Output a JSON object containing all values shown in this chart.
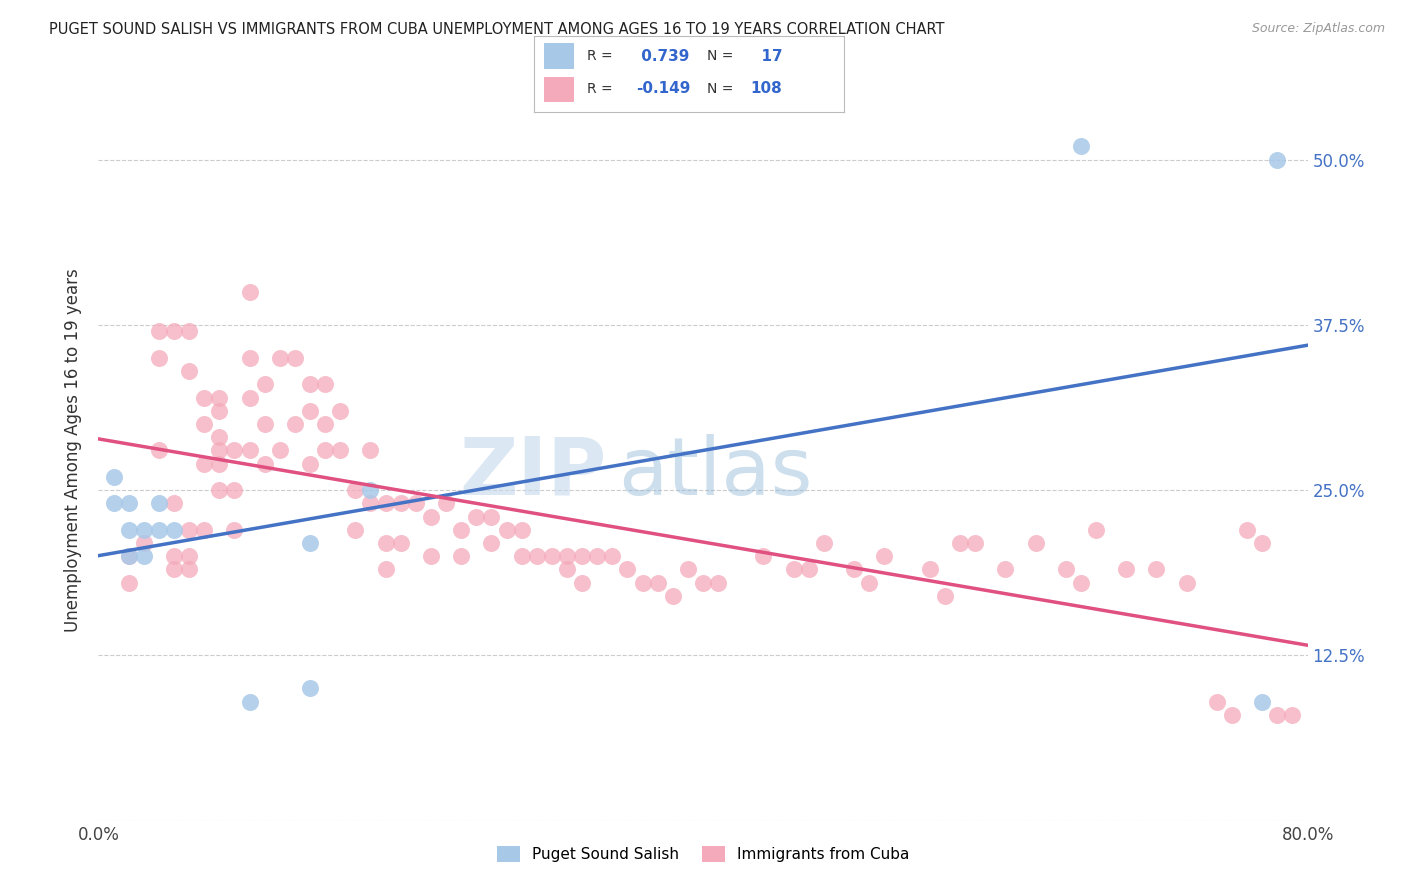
{
  "title": "PUGET SOUND SALISH VS IMMIGRANTS FROM CUBA UNEMPLOYMENT AMONG AGES 16 TO 19 YEARS CORRELATION CHART",
  "source": "Source: ZipAtlas.com",
  "ylabel": "Unemployment Among Ages 16 to 19 years",
  "xlim": [
    0.0,
    0.8
  ],
  "ylim": [
    0.0,
    0.56
  ],
  "xticks": [
    0.0,
    0.1,
    0.2,
    0.3,
    0.4,
    0.5,
    0.6,
    0.7,
    0.8
  ],
  "xtick_labels": [
    "0.0%",
    "",
    "",
    "",
    "",
    "",
    "",
    "",
    "80.0%"
  ],
  "yticks": [
    0.0,
    0.125,
    0.25,
    0.375,
    0.5
  ],
  "ytick_labels_right": [
    "",
    "12.5%",
    "25.0%",
    "37.5%",
    "50.0%"
  ],
  "blue_r": 0.739,
  "blue_n": 17,
  "pink_r": -0.149,
  "pink_n": 108,
  "blue_color": "#a8c8e8",
  "pink_color": "#f4aaba",
  "blue_line_color": "#4472c4",
  "pink_line_color": "#e05080",
  "legend_r_color": "#3366cc",
  "watermark_zip": "ZIP",
  "watermark_atlas": "atlas",
  "blue_points_x": [
    0.01,
    0.01,
    0.02,
    0.02,
    0.02,
    0.03,
    0.03,
    0.04,
    0.04,
    0.05,
    0.1,
    0.14,
    0.14,
    0.18,
    0.65,
    0.77,
    0.78
  ],
  "blue_points_y": [
    0.24,
    0.26,
    0.24,
    0.22,
    0.2,
    0.22,
    0.2,
    0.22,
    0.24,
    0.22,
    0.09,
    0.21,
    0.1,
    0.25,
    0.51,
    0.09,
    0.5
  ],
  "pink_points_x": [
    0.02,
    0.02,
    0.03,
    0.04,
    0.04,
    0.05,
    0.05,
    0.05,
    0.06,
    0.06,
    0.06,
    0.07,
    0.07,
    0.07,
    0.08,
    0.08,
    0.08,
    0.08,
    0.09,
    0.09,
    0.1,
    0.1,
    0.1,
    0.11,
    0.11,
    0.11,
    0.12,
    0.12,
    0.13,
    0.13,
    0.14,
    0.14,
    0.14,
    0.15,
    0.15,
    0.15,
    0.16,
    0.16,
    0.17,
    0.17,
    0.18,
    0.18,
    0.19,
    0.19,
    0.19,
    0.2,
    0.2,
    0.21,
    0.22,
    0.22,
    0.23,
    0.24,
    0.24,
    0.25,
    0.26,
    0.26,
    0.27,
    0.28,
    0.28,
    0.29,
    0.3,
    0.31,
    0.31,
    0.32,
    0.32,
    0.33,
    0.34,
    0.35,
    0.36,
    0.37,
    0.38,
    0.39,
    0.4,
    0.41,
    0.44,
    0.46,
    0.47,
    0.48,
    0.5,
    0.51,
    0.52,
    0.55,
    0.56,
    0.57,
    0.58,
    0.6,
    0.62,
    0.64,
    0.65,
    0.66,
    0.68,
    0.7,
    0.72,
    0.74,
    0.75,
    0.76,
    0.77,
    0.78,
    0.79,
    0.04,
    0.05,
    0.06,
    0.06,
    0.07,
    0.08,
    0.08,
    0.09,
    0.1
  ],
  "pink_points_y": [
    0.2,
    0.18,
    0.21,
    0.35,
    0.28,
    0.2,
    0.24,
    0.19,
    0.22,
    0.2,
    0.19,
    0.3,
    0.27,
    0.22,
    0.32,
    0.29,
    0.27,
    0.25,
    0.28,
    0.22,
    0.4,
    0.35,
    0.28,
    0.33,
    0.3,
    0.27,
    0.35,
    0.28,
    0.35,
    0.3,
    0.33,
    0.31,
    0.27,
    0.33,
    0.3,
    0.28,
    0.31,
    0.28,
    0.25,
    0.22,
    0.28,
    0.24,
    0.24,
    0.21,
    0.19,
    0.24,
    0.21,
    0.24,
    0.23,
    0.2,
    0.24,
    0.22,
    0.2,
    0.23,
    0.23,
    0.21,
    0.22,
    0.22,
    0.2,
    0.2,
    0.2,
    0.2,
    0.19,
    0.2,
    0.18,
    0.2,
    0.2,
    0.19,
    0.18,
    0.18,
    0.17,
    0.19,
    0.18,
    0.18,
    0.2,
    0.19,
    0.19,
    0.21,
    0.19,
    0.18,
    0.2,
    0.19,
    0.17,
    0.21,
    0.21,
    0.19,
    0.21,
    0.19,
    0.18,
    0.22,
    0.19,
    0.19,
    0.18,
    0.09,
    0.08,
    0.22,
    0.21,
    0.08,
    0.08,
    0.37,
    0.37,
    0.37,
    0.34,
    0.32,
    0.31,
    0.28,
    0.25,
    0.32
  ],
  "background_color": "#ffffff",
  "grid_color": "#cccccc",
  "fig_width": 14.06,
  "fig_height": 8.92
}
